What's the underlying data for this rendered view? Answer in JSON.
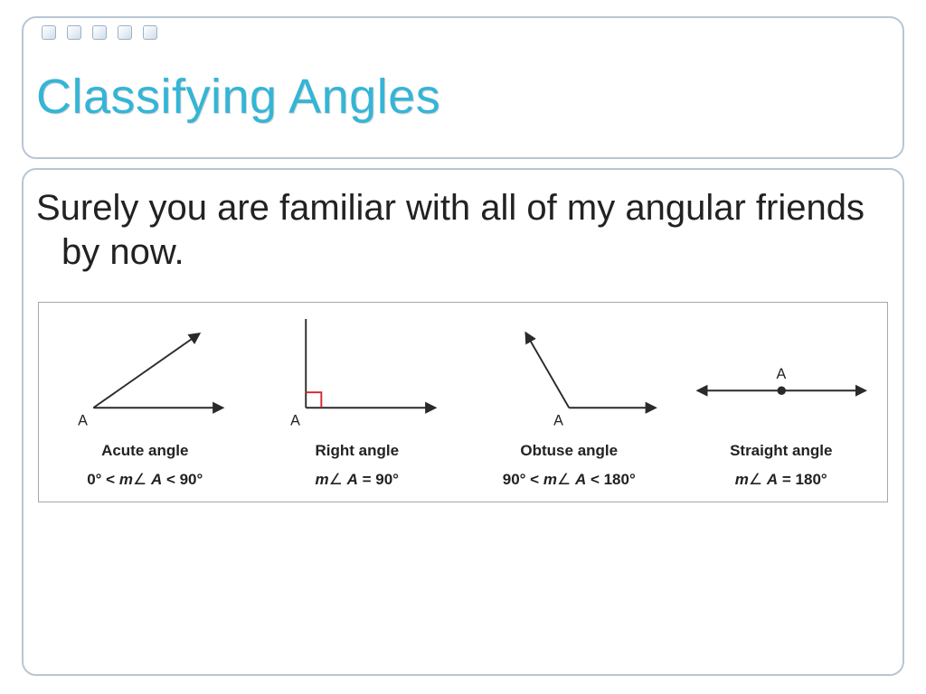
{
  "colors": {
    "title": "#35b5d6",
    "text": "#222222",
    "frame_border": "#b8c6d4",
    "table_border": "#a7a7a7",
    "angle_line": "#2a2a2a",
    "right_angle_marker": "#d6232a",
    "background": "#ffffff"
  },
  "title": "Classifying Angles",
  "lead": "Surely you are familiar with all of my angular friends by now.",
  "vertex_label": "A",
  "angles": [
    {
      "key": "acute",
      "name": "Acute angle",
      "formula_html": "0° < <span class='ital'>m</span><span class='ang'>∠</span> <span class='ital'>A</span> < 90°",
      "diagram": {
        "type": "angle",
        "deg": 35,
        "style": "rays",
        "line_color": "#2a2a2a",
        "line_width": 2
      }
    },
    {
      "key": "right",
      "name": "Right angle",
      "formula_html": "<span class='ital'>m</span><span class='ang'>∠</span> <span class='ital'>A</span> = 90°",
      "diagram": {
        "type": "angle",
        "deg": 90,
        "style": "rays",
        "right_marker": true,
        "marker_color": "#d6232a",
        "line_color": "#2a2a2a",
        "line_width": 2
      }
    },
    {
      "key": "obtuse",
      "name": "Obtuse angle",
      "formula_html": "90° < <span class='ital'>m</span><span class='ang'>∠</span> <span class='ital'>A</span> < 180°",
      "diagram": {
        "type": "angle",
        "deg": 120,
        "style": "rays",
        "line_color": "#2a2a2a",
        "line_width": 2
      }
    },
    {
      "key": "straight",
      "name": "Straight angle",
      "formula_html": "<span class='ital'>m</span><span class='ang'>∠</span> <span class='ital'>A</span> = 180°",
      "diagram": {
        "type": "straight",
        "line_color": "#2a2a2a",
        "line_width": 2,
        "point_radius": 5
      }
    }
  ]
}
